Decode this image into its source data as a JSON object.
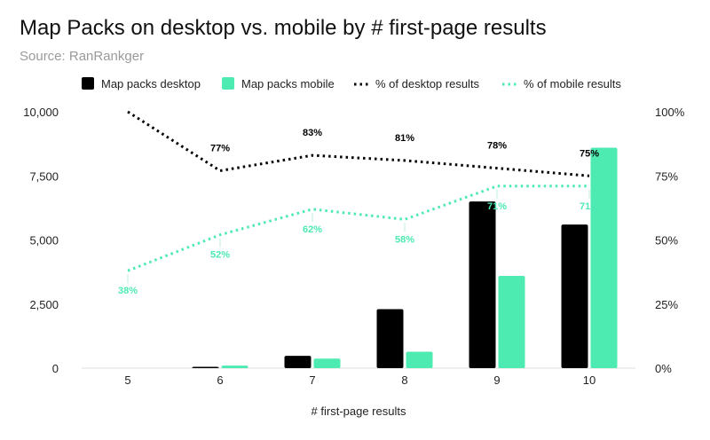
{
  "title": "Map Packs on desktop vs. mobile by # first-page results",
  "subtitle": "Source: RanRankger",
  "colors": {
    "desktop": "#000000",
    "mobile": "#4deab2"
  },
  "chart_data": {
    "type": "bar",
    "xlabel": "# first-page results",
    "categories": [
      "5",
      "6",
      "7",
      "8",
      "9",
      "10"
    ],
    "ylim": [
      0,
      10000
    ],
    "y2lim": [
      0,
      100
    ],
    "left_ticks": [
      "0",
      "2,500",
      "5,000",
      "7,500",
      "10,000"
    ],
    "left_tick_values": [
      0,
      2500,
      5000,
      7500,
      10000
    ],
    "right_ticks": [
      "0%",
      "25%",
      "50%",
      "75%",
      "100%"
    ],
    "right_tick_values": [
      0,
      25,
      50,
      75,
      100
    ],
    "legend_position": "top",
    "series": [
      {
        "name": "Map packs desktop",
        "kind": "bar",
        "axis": "left",
        "values": [
          0,
          50,
          480,
          2300,
          6500,
          5600
        ]
      },
      {
        "name": "Map packs mobile",
        "kind": "bar",
        "axis": "left",
        "values": [
          0,
          100,
          370,
          640,
          3600,
          8600
        ]
      },
      {
        "name": "% of desktop results",
        "kind": "line",
        "axis": "right",
        "values": [
          100,
          77,
          83,
          81,
          78,
          75
        ],
        "labels": [
          "",
          "77%",
          "83%",
          "81%",
          "78%",
          "75%"
        ]
      },
      {
        "name": "% of mobile results",
        "kind": "line",
        "axis": "right",
        "values": [
          38,
          52,
          62,
          58,
          71,
          71
        ],
        "labels": [
          "38%",
          "52%",
          "62%",
          "58%",
          "71%",
          "71%"
        ]
      }
    ]
  }
}
